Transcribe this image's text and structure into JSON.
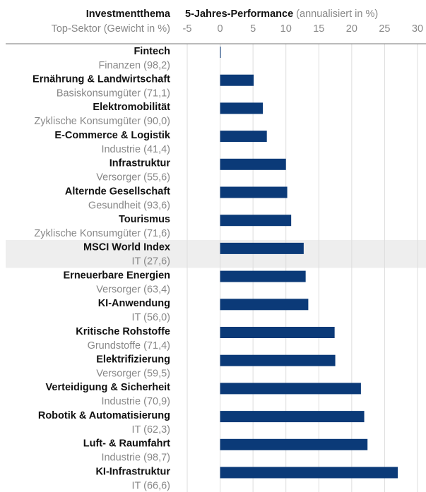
{
  "chart_data": {
    "type": "bar",
    "orientation": "horizontal",
    "label_header": "Investmentthema",
    "sublabel_header": "Top-Sektor (Gewicht in %)",
    "title": "5-Jahres-Performance",
    "subtitle": "(annualisiert in %)",
    "categories": [
      "Fintech",
      "Ernährung & Landwirtschaft",
      "Elektromobilität",
      "E-Commerce & Logistik",
      "Infrastruktur",
      "Alternde Gesellschaft",
      "Tourismus",
      "MSCI World Index",
      "Erneuerbare Energien",
      "KI-Anwendung",
      "Kritische Rohstoffe",
      "Elektrifizierung",
      "Verteidigung & Sicherheit",
      "Robotik & Automatisierung",
      "Luft- & Raumfahrt",
      "KI-Infrastruktur"
    ],
    "sublabels": [
      "Finanzen (98,2)",
      "Basiskonsumgüter (71,1)",
      "Zyklische Konsumgüter (90,0)",
      "Industrie (41,4)",
      "Versorger (55,6)",
      "Gesundheit (93,6)",
      "Zyklische Konsumgüter (71,6)",
      "IT (27,6)",
      "Versorger (63,4)",
      "IT (56,0)",
      "Grundstoffe (71,4)",
      "Versorger (59,5)",
      "Industrie (70,9)",
      "IT (62,3)",
      "Industrie (98,7)",
      "IT (66,6)"
    ],
    "values": [
      0.1,
      5.1,
      6.5,
      7.1,
      10.0,
      10.2,
      10.8,
      12.7,
      13.0,
      13.4,
      17.4,
      17.5,
      21.4,
      21.9,
      22.4,
      27.0
    ],
    "color": "#0b3a78",
    "highlight_index": 7,
    "xlim": [
      -5,
      30
    ],
    "xticks": [
      -5,
      0,
      5,
      10,
      15,
      20,
      25,
      30
    ],
    "grid": true
  }
}
